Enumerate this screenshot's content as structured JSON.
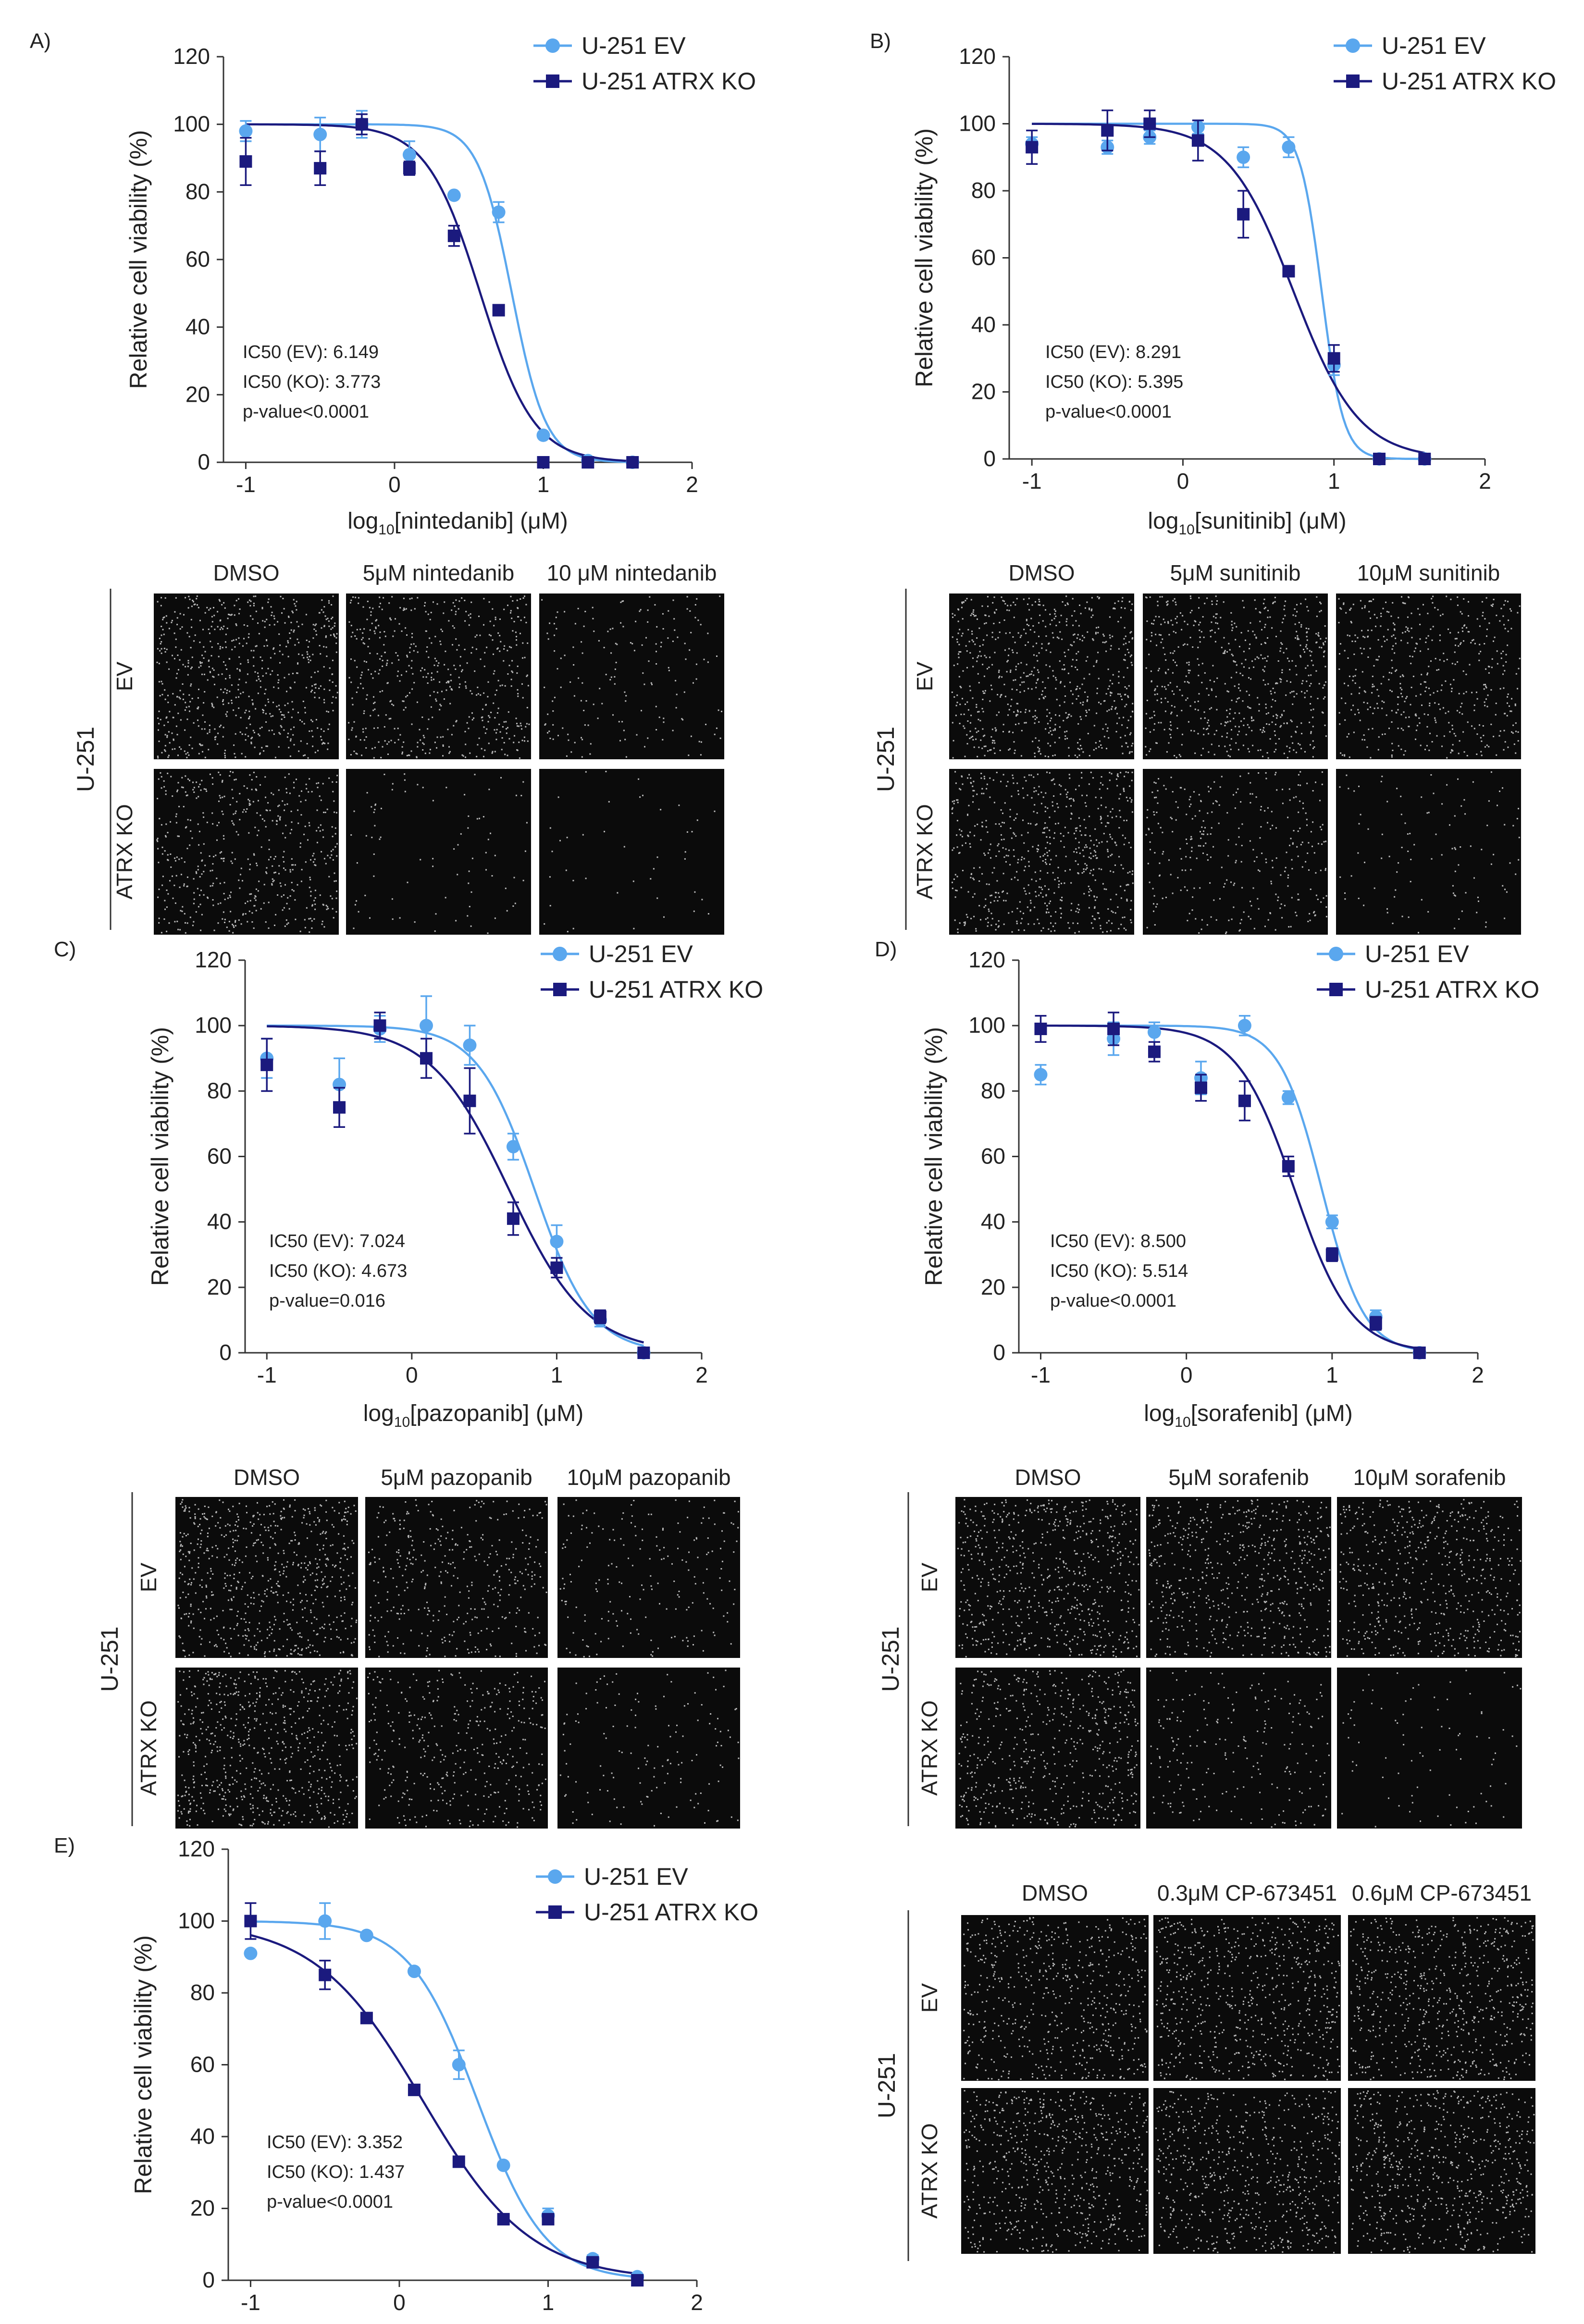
{
  "colors": {
    "ev": "#5aa7ee",
    "ko": "#1b1a7e",
    "axis": "#333333",
    "cell_bg": "#0b0b0b",
    "cell_dot": "#d8d8d8"
  },
  "chart_data": [
    {
      "type": "scatter",
      "panel_label": "A)",
      "xlabel": "log10[nintedanib] (μM)",
      "xlabel_base": "log",
      "xlabel_sub": "10",
      "xlabel_rest": "[nintedanib] (μM)",
      "ylabel": "Relative cell viability (%)",
      "xlim": [
        -1.15,
        2.0
      ],
      "ylim": [
        0,
        120
      ],
      "xticks": [
        -1,
        0,
        1,
        2
      ],
      "yticks": [
        0,
        20,
        40,
        60,
        80,
        100,
        120
      ],
      "legend_position": "top-right",
      "annotations": [
        "IC50 (EV): 6.149",
        "IC50 (KO): 3.773",
        "p-value<0.0001"
      ],
      "series": [
        {
          "name": "U-251 EV",
          "color": "#5aa7ee",
          "marker": "circle",
          "x": [
            -1,
            -0.5,
            -0.22,
            0.1,
            0.4,
            0.7,
            1.0,
            1.3,
            1.6
          ],
          "y": [
            98,
            97,
            100,
            91,
            79,
            74,
            8,
            0.5,
            0
          ],
          "err": [
            3,
            5,
            4,
            4,
            0,
            3,
            0,
            0,
            0
          ],
          "fit": {
            "ic50": 6.149,
            "hill": 3.8
          }
        },
        {
          "name": "U-251 ATRX KO",
          "color": "#1b1a7e",
          "marker": "square",
          "x": [
            -1,
            -0.5,
            -0.22,
            0.1,
            0.4,
            0.7,
            1.0,
            1.3,
            1.6
          ],
          "y": [
            89,
            87,
            100,
            87,
            67,
            45,
            0,
            0,
            0
          ],
          "err": [
            7,
            5,
            3,
            2,
            3,
            0,
            0,
            0,
            0
          ],
          "fit": {
            "ic50": 3.773,
            "hill": 2.4
          }
        }
      ]
    },
    {
      "type": "scatter",
      "panel_label": "B)",
      "xlabel": "log10[sunitinib] (μM)",
      "xlabel_base": "log",
      "xlabel_sub": "10",
      "xlabel_rest": "[sunitinib] (μM)",
      "ylabel": "Relative cell viability (%)",
      "xlim": [
        -1.15,
        2.0
      ],
      "ylim": [
        0,
        120
      ],
      "xticks": [
        -1,
        0,
        1,
        2
      ],
      "yticks": [
        0,
        20,
        40,
        60,
        80,
        100,
        120
      ],
      "legend_position": "top-right",
      "annotations": [
        "IC50 (EV): 8.291",
        "IC50 (KO): 5.395",
        "p-value<0.0001"
      ],
      "series": [
        {
          "name": "U-251 EV",
          "color": "#5aa7ee",
          "marker": "circle",
          "x": [
            -1,
            -0.5,
            -0.22,
            0.1,
            0.4,
            0.7,
            1.0,
            1.3,
            1.6
          ],
          "y": [
            94,
            93,
            96,
            99,
            90,
            93,
            28,
            0,
            0
          ],
          "err": [
            2,
            2,
            2,
            2,
            3,
            3,
            3,
            0,
            0
          ],
          "fit": {
            "ic50": 8.291,
            "hill": 6.0
          }
        },
        {
          "name": "U-251 ATRX KO",
          "color": "#1b1a7e",
          "marker": "square",
          "x": [
            -1,
            -0.5,
            -0.22,
            0.1,
            0.4,
            0.7,
            1.0,
            1.3,
            1.6
          ],
          "y": [
            93,
            98,
            100,
            95,
            73,
            56,
            30,
            0,
            0
          ],
          "err": [
            5,
            6,
            4,
            6,
            7,
            0,
            4,
            0,
            0
          ],
          "fit": {
            "ic50": 5.395,
            "hill": 2.0
          }
        }
      ]
    },
    {
      "type": "scatter",
      "panel_label": "C)",
      "xlabel": "log10[pazopanib] (μM)",
      "xlabel_base": "log",
      "xlabel_sub": "10",
      "xlabel_rest": "[pazopanib] (μM)",
      "ylabel": "Relative cell viability (%)",
      "xlim": [
        -1.15,
        2.0
      ],
      "ylim": [
        0,
        120
      ],
      "xticks": [
        -1,
        0,
        1,
        2
      ],
      "yticks": [
        0,
        20,
        40,
        60,
        80,
        100,
        120
      ],
      "legend_position": "top-right",
      "annotations": [
        "IC50 (EV): 7.024",
        "IC50 (KO): 4.673",
        "p-value=0.016"
      ],
      "series": [
        {
          "name": "U-251 EV",
          "color": "#5aa7ee",
          "marker": "circle",
          "x": [
            -1,
            -0.5,
            -0.22,
            0.1,
            0.4,
            0.7,
            1.0,
            1.3,
            1.6
          ],
          "y": [
            90,
            82,
            99,
            100,
            94,
            63,
            34,
            10,
            0
          ],
          "err": [
            6,
            8,
            4,
            9,
            6,
            4,
            5,
            2,
            0
          ],
          "fit": {
            "ic50": 7.024,
            "hill": 2.2
          }
        },
        {
          "name": "U-251 ATRX KO",
          "color": "#1b1a7e",
          "marker": "square",
          "x": [
            -1,
            -0.5,
            -0.22,
            0.1,
            0.4,
            0.7,
            1.0,
            1.3,
            1.6
          ],
          "y": [
            88,
            75,
            100,
            90,
            77,
            41,
            26,
            11,
            0
          ],
          "err": [
            8,
            6,
            4,
            6,
            10,
            5,
            3,
            2,
            0
          ],
          "fit": {
            "ic50": 4.673,
            "hill": 1.6
          }
        }
      ]
    },
    {
      "type": "scatter",
      "panel_label": "D)",
      "xlabel": "log10[sorafenib] (μM)",
      "xlabel_base": "log",
      "xlabel_sub": "10",
      "xlabel_rest": "[sorafenib] (μM)",
      "ylabel": "Relative cell viability (%)",
      "xlim": [
        -1.15,
        2.0
      ],
      "ylim": [
        0,
        120
      ],
      "xticks": [
        -1,
        0,
        1,
        2
      ],
      "yticks": [
        0,
        20,
        40,
        60,
        80,
        100,
        120
      ],
      "legend_position": "top-right",
      "annotations": [
        "IC50 (EV): 8.500",
        "IC50 (KO): 5.514",
        "p-value<0.0001"
      ],
      "series": [
        {
          "name": "U-251 EV",
          "color": "#5aa7ee",
          "marker": "circle",
          "x": [
            -1,
            -0.5,
            -0.22,
            0.1,
            0.4,
            0.7,
            1.0,
            1.3,
            1.6
          ],
          "y": [
            85,
            96,
            98,
            84,
            100,
            78,
            40,
            11,
            0
          ],
          "err": [
            3,
            5,
            3,
            5,
            3,
            2,
            2,
            2,
            0
          ],
          "fit": {
            "ic50": 8.5,
            "hill": 3.0
          }
        },
        {
          "name": "U-251 ATRX KO",
          "color": "#1b1a7e",
          "marker": "square",
          "x": [
            -1,
            -0.5,
            -0.22,
            0.1,
            0.4,
            0.7,
            1.0,
            1.3,
            1.6
          ],
          "y": [
            99,
            99,
            92,
            81,
            77,
            57,
            30,
            9,
            0
          ],
          "err": [
            4,
            5,
            3,
            4,
            6,
            3,
            2,
            2,
            0
          ],
          "fit": {
            "ic50": 5.514,
            "hill": 2.2
          }
        }
      ]
    },
    {
      "type": "scatter",
      "panel_label": "E)",
      "xlabel": "",
      "xlabel_base": "",
      "xlabel_sub": "",
      "xlabel_rest": "",
      "ylabel": "Relative cell viability (%)",
      "xlim": [
        -1.15,
        2.0
      ],
      "ylim": [
        0,
        120
      ],
      "xticks": [
        -1,
        0,
        1,
        2
      ],
      "yticks": [
        0,
        20,
        40,
        60,
        80,
        100,
        120
      ],
      "legend_position": "top-right",
      "annotations": [
        "IC50 (EV): 3.352",
        "IC50 (KO): 1.437",
        "p-value<0.0001"
      ],
      "series": [
        {
          "name": "U-251 EV",
          "color": "#5aa7ee",
          "marker": "circle",
          "x": [
            -1,
            -0.5,
            -0.22,
            0.1,
            0.4,
            0.7,
            1.0,
            1.3,
            1.6
          ],
          "y": [
            91,
            100,
            96,
            86,
            60,
            32,
            18,
            6,
            1
          ],
          "err": [
            0,
            5,
            0,
            0,
            4,
            0,
            2,
            1,
            0
          ],
          "fit": {
            "ic50": 3.352,
            "hill": 1.9
          }
        },
        {
          "name": "U-251 ATRX KO",
          "color": "#1b1a7e",
          "marker": "square",
          "x": [
            -1,
            -0.5,
            -0.22,
            0.1,
            0.4,
            0.7,
            1.0,
            1.3,
            1.6
          ],
          "y": [
            100,
            85,
            73,
            53,
            33,
            17,
            17,
            5,
            0
          ],
          "err": [
            5,
            4,
            0,
            0,
            0,
            0,
            0,
            0,
            0
          ],
          "fit": {
            "ic50": 1.437,
            "hill": 1.2
          }
        }
      ]
    }
  ],
  "microscopy": [
    {
      "panel": "A",
      "row_group_label": "U-251",
      "row_labels": [
        "EV",
        "ATRX KO"
      ],
      "column_labels": [
        "DMSO",
        "5μM nintedanib",
        "10 μM nintedanib"
      ],
      "density": [
        [
          0.95,
          0.75,
          0.25
        ],
        [
          0.75,
          0.12,
          0.06
        ]
      ]
    },
    {
      "panel": "B",
      "row_group_label": "U-251",
      "row_labels": [
        "EV",
        "ATRX KO"
      ],
      "column_labels": [
        "DMSO",
        "5μM sunitinib",
        "10μM sunitinib"
      ],
      "density": [
        [
          0.95,
          0.85,
          0.7
        ],
        [
          0.9,
          0.45,
          0.15
        ]
      ]
    },
    {
      "panel": "C",
      "row_group_label": "U-251",
      "row_labels": [
        "EV",
        "ATRX KO"
      ],
      "column_labels": [
        "DMSO",
        "5μM pazopanib",
        "10μM pazopanib"
      ],
      "density": [
        [
          0.95,
          0.55,
          0.28
        ],
        [
          0.95,
          0.55,
          0.2
        ]
      ]
    },
    {
      "panel": "D",
      "row_group_label": "U-251",
      "row_labels": [
        "EV",
        "ATRX KO"
      ],
      "column_labels": [
        "DMSO",
        "5μM sorafenib",
        "10μM sorafenib"
      ],
      "density": [
        [
          0.95,
          0.85,
          0.8
        ],
        [
          0.8,
          0.32,
          0.12
        ]
      ]
    },
    {
      "panel": "E",
      "row_group_label": "U-251",
      "row_labels": [
        "EV",
        "ATRX KO"
      ],
      "column_labels": [
        "DMSO",
        "0.3μM CP-673451",
        "0.6μM CP-673451"
      ],
      "density": [
        [
          0.85,
          0.95,
          0.95
        ],
        [
          0.95,
          0.9,
          0.95
        ]
      ]
    }
  ]
}
